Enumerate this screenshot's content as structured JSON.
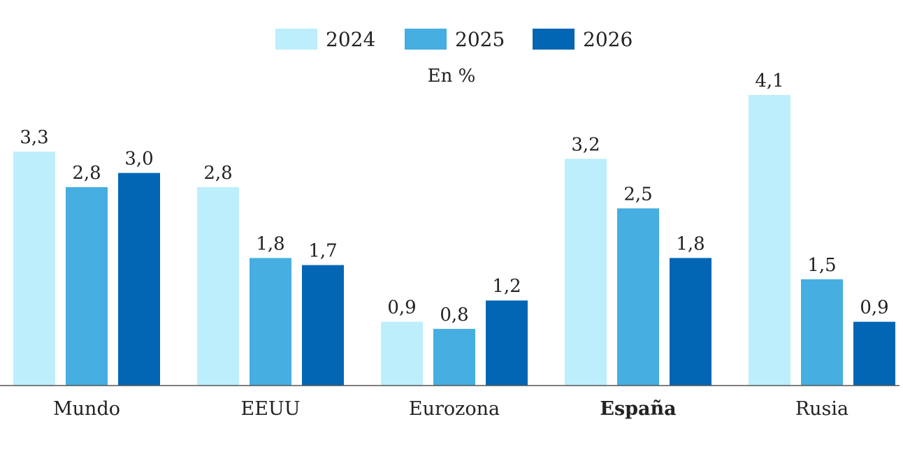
{
  "chart_data": {
    "type": "bar",
    "subtitle": "En %",
    "categories": [
      "Mundo",
      "EEUU",
      "Eurozona",
      "España",
      "Rusia"
    ],
    "highlight_category": "España",
    "series": [
      {
        "name": "2024",
        "color": "#bdeefc",
        "values": [
          3.3,
          2.8,
          0.9,
          3.2,
          4.1
        ],
        "labels": [
          "3,3",
          "2,8",
          "0,9",
          "3,2",
          "4,1"
        ]
      },
      {
        "name": "2025",
        "color": "#46aee0",
        "values": [
          2.8,
          1.8,
          0.8,
          2.5,
          1.5
        ],
        "labels": [
          "2,8",
          "1,8",
          "0,8",
          "2,5",
          "1,5"
        ]
      },
      {
        "name": "2026",
        "color": "#0366b4",
        "values": [
          3.0,
          1.7,
          1.2,
          1.8,
          0.9
        ],
        "labels": [
          "3,0",
          "1,7",
          "1,2",
          "1,8",
          "0,9"
        ]
      }
    ],
    "ylim": [
      0,
      4.1
    ],
    "grid": false,
    "legend": "top-center",
    "xlabel": "",
    "ylabel": ""
  }
}
